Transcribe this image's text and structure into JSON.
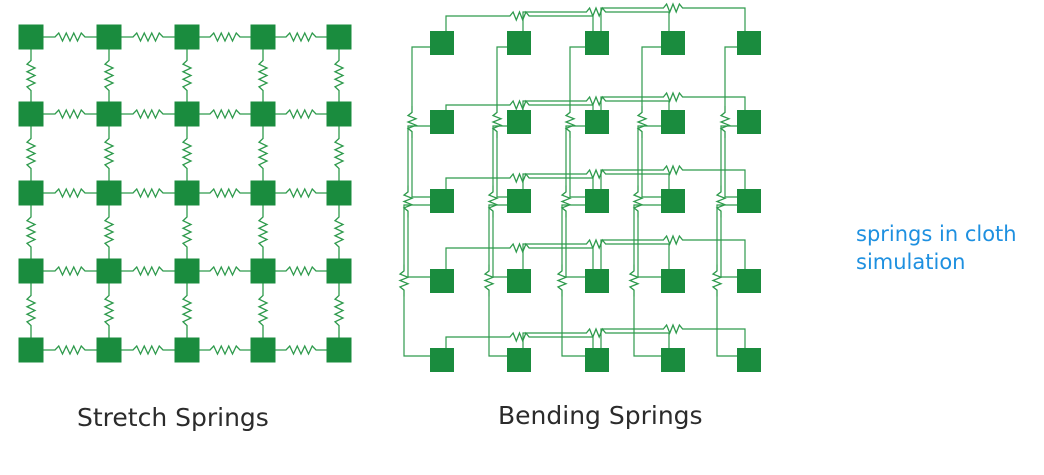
{
  "colors": {
    "node": "#1a8c3e",
    "spring": "#2e9a4c",
    "caption": "#2b2b2b",
    "note": "#1e90e0"
  },
  "diagrams": [
    {
      "id": "stretch",
      "caption": "Stretch Springs",
      "rows": 5,
      "cols": 5
    },
    {
      "id": "bending",
      "caption": "Bending Springs",
      "rows": 5,
      "cols": 5
    }
  ],
  "note": {
    "lines": [
      "springs in cloth",
      "simulation"
    ]
  }
}
